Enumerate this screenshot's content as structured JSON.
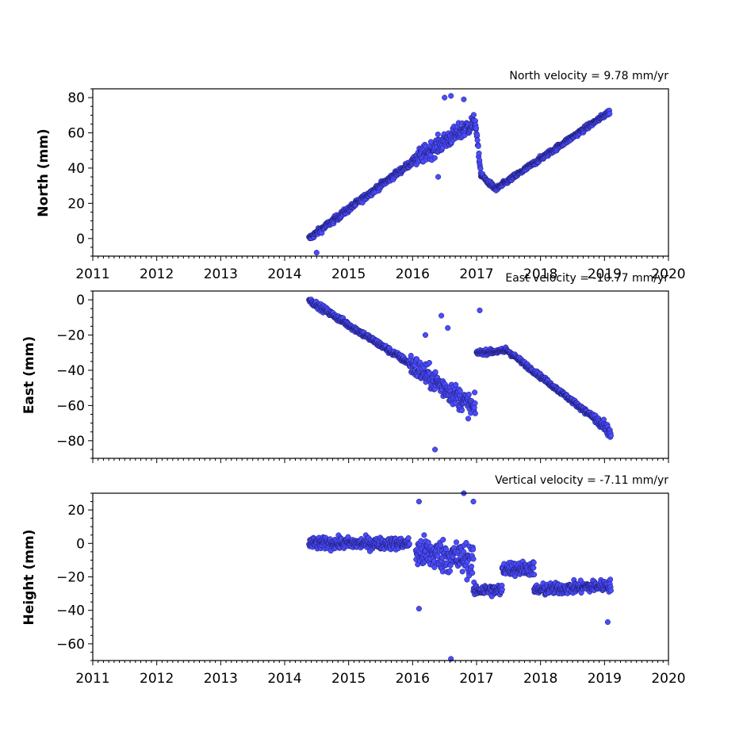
{
  "colors": {
    "point_fill": "#4b4bff",
    "point_edge": "#1a1a66"
  },
  "chart_data": [
    {
      "type": "scatter",
      "title": "North velocity = 9.78 mm/yr",
      "ylabel": "North (mm)",
      "xlim": [
        2011,
        2020
      ],
      "ylim": [
        -10,
        85
      ],
      "yticks": [
        0,
        20,
        40,
        60,
        80
      ],
      "x_tick_labels": [
        "2011",
        "2012",
        "2013",
        "2014",
        "2015",
        "2016",
        "2017",
        "2018",
        "2019",
        "2020"
      ],
      "segments": [
        {
          "x": [
            2014.38,
            2016.05
          ],
          "y": [
            0,
            45
          ],
          "scatter": 2.5
        },
        {
          "x": [
            2016.05,
            2016.98
          ],
          "y": [
            45,
            66
          ],
          "scatter": 7
        },
        {
          "x": [
            2016.98,
            2017.07
          ],
          "y": [
            66,
            36
          ],
          "scatter": 3
        },
        {
          "x": [
            2017.07,
            2017.3
          ],
          "y": [
            36,
            28
          ],
          "scatter": 2
        },
        {
          "x": [
            2017.3,
            2019.08
          ],
          "y": [
            28,
            72
          ],
          "scatter": 2
        }
      ],
      "outliers": [
        [
          2014.5,
          -8
        ],
        [
          2016.5,
          80
        ],
        [
          2016.6,
          81
        ],
        [
          2016.4,
          35
        ],
        [
          2016.8,
          79
        ]
      ]
    },
    {
      "type": "scatter",
      "title": "East velocity = -10.77 mm/yr",
      "ylabel": "East (mm)",
      "xlim": [
        2011,
        2020
      ],
      "ylim": [
        -90,
        5
      ],
      "yticks": [
        0,
        -20,
        -40,
        -60,
        -80
      ],
      "x_tick_labels": [],
      "segments": [
        {
          "x": [
            2014.38,
            2015.95
          ],
          "y": [
            0,
            -36
          ],
          "scatter": 2.5
        },
        {
          "x": [
            2015.95,
            2016.98
          ],
          "y": [
            -36,
            -62
          ],
          "scatter": 9
        },
        {
          "x": [
            2017.0,
            2017.45
          ],
          "y": [
            -30,
            -29
          ],
          "scatter": 2
        },
        {
          "x": [
            2017.45,
            2018.8
          ],
          "y": [
            -28,
            -66
          ],
          "scatter": 2
        },
        {
          "x": [
            2018.8,
            2019.1
          ],
          "y": [
            -66,
            -76
          ],
          "scatter": 5
        }
      ],
      "outliers": [
        [
          2016.45,
          -9
        ],
        [
          2016.35,
          -85
        ],
        [
          2017.05,
          -6
        ],
        [
          2016.2,
          -20
        ],
        [
          2016.55,
          -16
        ]
      ]
    },
    {
      "type": "scatter",
      "title": "Vertical velocity = -7.11 mm/yr",
      "ylabel": "Height (mm)",
      "xlim": [
        2011,
        2020
      ],
      "ylim": [
        -70,
        30
      ],
      "yticks": [
        20,
        0,
        -20,
        -40,
        -60
      ],
      "x_tick_labels": [
        "2011",
        "2012",
        "2013",
        "2014",
        "2015",
        "2016",
        "2017",
        "2018",
        "2019",
        "2020"
      ],
      "segments": [
        {
          "x": [
            2014.38,
            2015.95
          ],
          "y": [
            0,
            0
          ],
          "scatter": 5
        },
        {
          "x": [
            2016.05,
            2016.95
          ],
          "y": [
            -5,
            -10
          ],
          "scatter": 14
        },
        {
          "x": [
            2016.95,
            2017.4
          ],
          "y": [
            -28,
            -28
          ],
          "scatter": 5
        },
        {
          "x": [
            2017.4,
            2017.9
          ],
          "y": [
            -15,
            -15
          ],
          "scatter": 6
        },
        {
          "x": [
            2017.9,
            2019.1
          ],
          "y": [
            -28,
            -25
          ],
          "scatter": 5
        }
      ],
      "outliers": [
        [
          2016.6,
          -69
        ],
        [
          2016.8,
          30
        ],
        [
          2016.1,
          25
        ],
        [
          2016.95,
          25
        ],
        [
          2019.05,
          -47
        ],
        [
          2016.1,
          -39
        ]
      ]
    }
  ]
}
